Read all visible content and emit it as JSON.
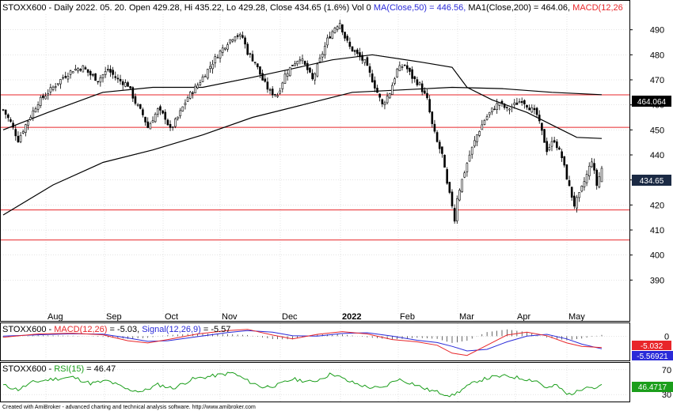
{
  "colors": {
    "background": "#ffffff",
    "grid": "#c8c8c8",
    "candle": "#000000",
    "support_line": "#e8262a",
    "ma": "#000000",
    "macd_line": "#e8262a",
    "signal_line": "#2a2ad8",
    "rsi_line": "#1b9e1b",
    "price_tag": "#1b2a44",
    "macd_tag": "#e8262a",
    "signal_tag": "#2a2ad8",
    "rsi_tag": "#1b9e1b"
  },
  "header": {
    "prefix": "STOXX600 - Daily 2022. 05. 20. Open 429.28, Hi 435.22, Lo 429.28, Close 434.65 (1.6%) Vol 0 ",
    "ma50": "MA(Close,50) = 446.56, ",
    "ma200": "MA1(Close,200) = 464.06, ",
    "macd": "MACD(12,26"
  },
  "macd_header": {
    "prefix": "STOXX600 - ",
    "macd": "MACD(12,26)",
    "macd_val": " = -5.03, ",
    "signal": "Signal(12,26,9)",
    "signal_val": " = -5.57"
  },
  "rsi_header": {
    "prefix": "STOXX600 - ",
    "rsi": "RSI(15)",
    "rsi_val": " = 46.47"
  },
  "tags": {
    "ma200": "464.064",
    "last_price": "434.65",
    "macd": "-5.032",
    "signal": "-5.56921",
    "rsi": "46.4717"
  },
  "footer": "Created with AmiBroker - advanced charting and technical analysis software. http://www.amibroker.com",
  "chart_data": [
    {
      "type": "candlestick",
      "symbol": "STOXX600",
      "ylim": [
        380,
        500
      ],
      "y_ticks": [
        390,
        400,
        410,
        420,
        430,
        440,
        450,
        460,
        470,
        480,
        490,
        500
      ],
      "x_tick_labels": [
        {
          "label": "Aug",
          "bold": false
        },
        {
          "label": "Sep",
          "bold": false
        },
        {
          "label": "Oct",
          "bold": false
        },
        {
          "label": "Nov",
          "bold": false
        },
        {
          "label": "Dec",
          "bold": false
        },
        {
          "label": "2022",
          "bold": true
        },
        {
          "label": "Feb",
          "bold": false
        },
        {
          "label": "Mar",
          "bold": false
        },
        {
          "label": "Apr",
          "bold": false
        },
        {
          "label": "May",
          "bold": false
        }
      ],
      "support_resistance_levels": [
        464,
        451,
        418,
        406
      ],
      "close_path": [
        [
          0,
          458
        ],
        [
          3,
          453
        ],
        [
          6,
          446
        ],
        [
          9,
          452
        ],
        [
          14,
          461
        ],
        [
          19,
          466
        ],
        [
          24,
          471
        ],
        [
          28,
          474
        ],
        [
          32,
          475
        ],
        [
          35,
          472
        ],
        [
          38,
          470
        ],
        [
          42,
          474
        ],
        [
          46,
          470
        ],
        [
          50,
          468
        ],
        [
          53,
          461
        ],
        [
          56,
          456
        ],
        [
          58,
          451
        ],
        [
          62,
          458
        ],
        [
          65,
          455
        ],
        [
          67,
          450
        ],
        [
          70,
          455
        ],
        [
          74,
          463
        ],
        [
          78,
          468
        ],
        [
          82,
          474
        ],
        [
          86,
          480
        ],
        [
          90,
          485
        ],
        [
          93,
          488
        ],
        [
          96,
          487
        ],
        [
          98,
          481
        ],
        [
          101,
          477
        ],
        [
          104,
          470
        ],
        [
          107,
          465
        ],
        [
          110,
          464
        ],
        [
          113,
          472
        ],
        [
          116,
          476
        ],
        [
          119,
          479
        ],
        [
          122,
          474
        ],
        [
          124,
          470
        ],
        [
          127,
          478
        ],
        [
          130,
          486
        ],
        [
          133,
          491
        ],
        [
          135,
          493
        ],
        [
          137,
          487
        ],
        [
          139,
          483
        ],
        [
          142,
          480
        ],
        [
          145,
          477
        ],
        [
          148,
          470
        ],
        [
          150,
          465
        ],
        [
          152,
          460
        ],
        [
          155,
          465
        ],
        [
          158,
          474
        ],
        [
          161,
          476
        ],
        [
          164,
          471
        ],
        [
          167,
          468
        ],
        [
          170,
          462
        ],
        [
          172,
          452
        ],
        [
          174,
          445
        ],
        [
          176,
          440
        ],
        [
          178,
          428
        ],
        [
          180,
          420
        ],
        [
          181,
          414
        ],
        [
          182,
          423
        ],
        [
          184,
          430
        ],
        [
          187,
          440
        ],
        [
          190,
          448
        ],
        [
          193,
          454
        ],
        [
          196,
          458
        ],
        [
          199,
          461
        ],
        [
          202,
          458
        ],
        [
          205,
          460
        ],
        [
          208,
          462
        ],
        [
          211,
          459
        ],
        [
          214,
          456
        ],
        [
          216,
          449
        ],
        [
          218,
          442
        ],
        [
          221,
          446
        ],
        [
          224,
          439
        ],
        [
          227,
          427
        ],
        [
          229,
          420
        ],
        [
          231,
          424
        ],
        [
          234,
          432
        ],
        [
          236,
          438
        ],
        [
          238,
          428
        ],
        [
          240,
          434.65
        ]
      ],
      "ma50_path": [
        [
          0,
          450
        ],
        [
          18,
          457
        ],
        [
          40,
          465
        ],
        [
          60,
          467
        ],
        [
          80,
          467
        ],
        [
          100,
          471
        ],
        [
          114,
          474
        ],
        [
          132,
          478
        ],
        [
          148,
          480
        ],
        [
          168,
          477
        ],
        [
          180,
          475
        ],
        [
          186,
          467
        ],
        [
          196,
          462
        ],
        [
          210,
          457
        ],
        [
          222,
          451
        ],
        [
          230,
          447
        ],
        [
          240,
          446.56
        ]
      ],
      "ma200_path": [
        [
          0,
          416
        ],
        [
          20,
          428
        ],
        [
          40,
          437
        ],
        [
          60,
          442
        ],
        [
          80,
          448
        ],
        [
          100,
          455
        ],
        [
          120,
          460
        ],
        [
          140,
          465
        ],
        [
          160,
          466
        ],
        [
          180,
          467
        ],
        [
          200,
          466.5
        ],
        [
          220,
          465
        ],
        [
          240,
          464.06
        ]
      ]
    },
    {
      "type": "line",
      "title": "MACD(12,26)",
      "series": [
        {
          "name": "MACD(12,26)",
          "values": [
            [
              0,
              -0.5
            ],
            [
              14,
              1.0
            ],
            [
              28,
              1.3
            ],
            [
              40,
              0.6
            ],
            [
              50,
              -2.0
            ],
            [
              58,
              -3.0
            ],
            [
              66,
              -1.5
            ],
            [
              78,
              1.0
            ],
            [
              90,
              2.5
            ],
            [
              98,
              3.0
            ],
            [
              108,
              0.5
            ],
            [
              116,
              -1.2
            ],
            [
              126,
              0.8
            ],
            [
              136,
              2.0
            ],
            [
              146,
              1.0
            ],
            [
              156,
              -1.5
            ],
            [
              166,
              -2.5
            ],
            [
              174,
              -4.0
            ],
            [
              180,
              -7.5
            ],
            [
              186,
              -8.5
            ],
            [
              194,
              -4.0
            ],
            [
              202,
              0.5
            ],
            [
              210,
              1.8
            ],
            [
              218,
              0.2
            ],
            [
              226,
              -3.0
            ],
            [
              232,
              -4.5
            ],
            [
              240,
              -5.03
            ]
          ]
        },
        {
          "name": "Signal(12,26,9)",
          "values": [
            [
              0,
              0.0
            ],
            [
              14,
              0.6
            ],
            [
              28,
              1.1
            ],
            [
              40,
              0.9
            ],
            [
              50,
              -0.8
            ],
            [
              58,
              -2.3
            ],
            [
              66,
              -2.0
            ],
            [
              78,
              -0.2
            ],
            [
              90,
              1.6
            ],
            [
              98,
              2.5
            ],
            [
              108,
              1.8
            ],
            [
              116,
              0.2
            ],
            [
              126,
              0.0
            ],
            [
              136,
              1.2
            ],
            [
              146,
              1.5
            ],
            [
              156,
              0.0
            ],
            [
              166,
              -1.8
            ],
            [
              174,
              -2.8
            ],
            [
              180,
              -4.5
            ],
            [
              186,
              -6.5
            ],
            [
              194,
              -5.8
            ],
            [
              202,
              -2.5
            ],
            [
              210,
              0.0
            ],
            [
              218,
              0.8
            ],
            [
              226,
              -1.2
            ],
            [
              232,
              -3.5
            ],
            [
              240,
              -5.57
            ]
          ]
        }
      ],
      "y_ticks": [
        0
      ],
      "ylim": [
        -10,
        5
      ]
    },
    {
      "type": "line",
      "title": "RSI(15)",
      "series": [
        {
          "name": "RSI(15)",
          "values": [
            [
              0,
              45
            ],
            [
              6,
              38
            ],
            [
              12,
              50
            ],
            [
              20,
              55
            ],
            [
              28,
              58
            ],
            [
              35,
              48
            ],
            [
              42,
              52
            ],
            [
              50,
              38
            ],
            [
              56,
              35
            ],
            [
              62,
              46
            ],
            [
              68,
              40
            ],
            [
              76,
              55
            ],
            [
              84,
              60
            ],
            [
              92,
              65
            ],
            [
              98,
              52
            ],
            [
              104,
              42
            ],
            [
              110,
              45
            ],
            [
              116,
              55
            ],
            [
              124,
              50
            ],
            [
              132,
              64
            ],
            [
              138,
              52
            ],
            [
              146,
              42
            ],
            [
              152,
              40
            ],
            [
              158,
              55
            ],
            [
              164,
              48
            ],
            [
              170,
              38
            ],
            [
              176,
              32
            ],
            [
              180,
              28
            ],
            [
              184,
              38
            ],
            [
              190,
              52
            ],
            [
              196,
              58
            ],
            [
              202,
              60
            ],
            [
              208,
              56
            ],
            [
              214,
              52
            ],
            [
              218,
              40
            ],
            [
              222,
              45
            ],
            [
              226,
              30
            ],
            [
              230,
              34
            ],
            [
              234,
              45
            ],
            [
              237,
              40
            ],
            [
              240,
              46.47
            ]
          ]
        }
      ],
      "y_ticks": [
        30,
        70
      ],
      "ylim": [
        20,
        80
      ]
    }
  ]
}
